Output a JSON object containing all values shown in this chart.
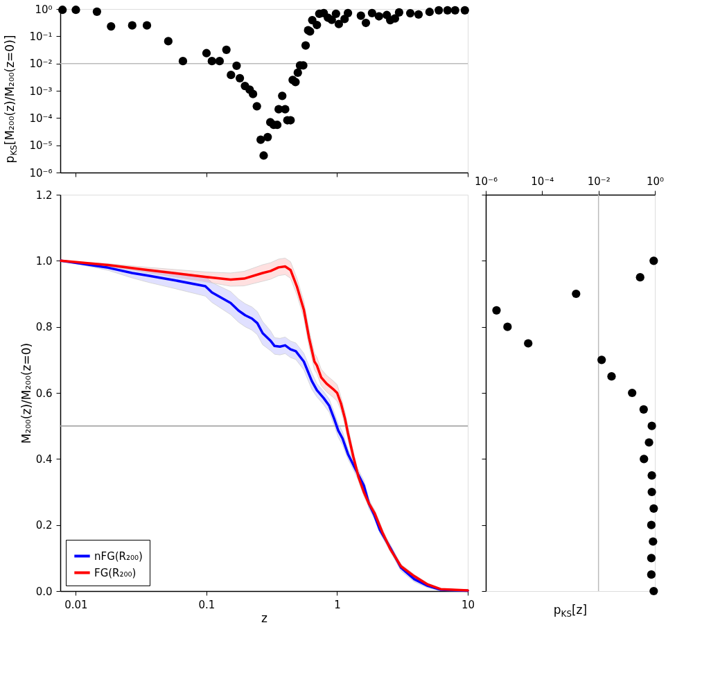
{
  "chart_data": [
    {
      "type": "scatter",
      "ylabel": "p$_{KS}$[M₂₀₀(z)/M₂₀₀(z=0)]",
      "log": "xy",
      "marker": "circle",
      "grid": false,
      "tick_labels": "y",
      "xlim": [
        0.0076,
        10
      ],
      "xticks": [
        0.01,
        0.1,
        1,
        10
      ],
      "ylim": [
        1e-06,
        1
      ],
      "yticks": [
        {
          "value": 1e-06,
          "label": "10⁻⁶"
        },
        {
          "value": 1e-05,
          "label": "10⁻⁵"
        },
        {
          "value": 0.0001,
          "label": "10⁻⁴"
        },
        {
          "value": 0.001,
          "label": "10⁻³"
        },
        {
          "value": 0.01,
          "label": "10⁻²"
        },
        {
          "value": 0.1,
          "label": "10⁻¹"
        },
        {
          "value": 1,
          "label": "10⁰"
        }
      ],
      "ref_lines": [
        {
          "axis": "y",
          "value": 0.01,
          "color": "#bbbbbb"
        }
      ],
      "series": [
        {
          "color": "#000000",
          "x": [
            0.0079,
            0.01,
            0.0145,
            0.0186,
            0.027,
            0.035,
            0.051,
            0.066,
            0.1,
            0.11,
            0.126,
            0.142,
            0.154,
            0.17,
            0.18,
            0.197,
            0.214,
            0.227,
            0.243,
            0.26,
            0.274,
            0.294,
            0.308,
            0.327,
            0.348,
            0.357,
            0.38,
            0.4,
            0.416,
            0.44,
            0.457,
            0.48,
            0.5,
            0.52,
            0.55,
            0.574,
            0.6,
            0.62,
            0.645,
            0.7,
            0.73,
            0.79,
            0.85,
            0.91,
            0.98,
            1.03,
            1.14,
            1.21,
            1.52,
            1.66,
            1.85,
            2.09,
            2.4,
            2.55,
            2.77,
            2.98,
            3.63,
            4.2,
            5.1,
            6,
            7,
            8,
            9.5
          ],
          "values": [
            0.93,
            0.93,
            0.8,
            0.23,
            0.25,
            0.25,
            0.066,
            0.0123,
            0.024,
            0.0123,
            0.0123,
            0.032,
            0.0038,
            0.0083,
            0.0029,
            0.0015,
            0.0011,
            0.00076,
            0.00027,
            1.6e-05,
            4.2e-06,
            2e-05,
            7e-05,
            5.6e-05,
            5.6e-05,
            0.00021,
            0.00065,
            0.00021,
            8.3e-05,
            8.3e-05,
            0.0025,
            0.0021,
            0.0046,
            0.0085,
            0.0085,
            0.046,
            0.166,
            0.15,
            0.39,
            0.26,
            0.67,
            0.71,
            0.48,
            0.4,
            0.67,
            0.28,
            0.43,
            0.71,
            0.57,
            0.31,
            0.71,
            0.54,
            0.6,
            0.39,
            0.45,
            0.75,
            0.7,
            0.63,
            0.78,
            0.9,
            0.9,
            0.9,
            0.9
          ]
        }
      ]
    },
    {
      "type": "line",
      "xlabel": "z",
      "ylabel": "M₂₀₀(z)/M₂₀₀(z=0)",
      "log": "x",
      "grid": false,
      "legend": "bottom left",
      "line_style": "solid",
      "xlim": [
        0.0076,
        10
      ],
      "xticks": [
        0.01,
        0.1,
        1,
        10
      ],
      "ylim": [
        0,
        1.2
      ],
      "yticks": [
        {
          "value": 0,
          "label": "0.0"
        },
        0.2,
        0.4,
        0.6,
        0.8,
        {
          "value": 1,
          "label": "1.0"
        },
        1.2
      ],
      "ref_lines": [
        {
          "axis": "y",
          "value": 0.5,
          "color": "#999999"
        }
      ],
      "series": [
        {
          "name": "nFG(R₂₀₀)",
          "color": "#0000ff",
          "x": [
            0.0077,
            0.011,
            0.0177,
            0.027,
            0.0357,
            0.057,
            0.098,
            0.11,
            0.153,
            0.176,
            0.198,
            0.223,
            0.245,
            0.269,
            0.309,
            0.332,
            0.365,
            0.4,
            0.44,
            0.483,
            0.556,
            0.64,
            0.7,
            0.79,
            0.87,
            0.95,
            1.02,
            1.1,
            1.21,
            1.39,
            1.6,
            1.75,
            1.93,
            2.12,
            2.56,
            3.08,
            3.9,
            4.93,
            6.2,
            10
          ],
          "values": [
            1.0,
            0.991,
            0.979,
            0.963,
            0.955,
            0.941,
            0.923,
            0.904,
            0.872,
            0.849,
            0.835,
            0.825,
            0.811,
            0.781,
            0.758,
            0.742,
            0.74,
            0.744,
            0.732,
            0.726,
            0.695,
            0.636,
            0.608,
            0.584,
            0.561,
            0.521,
            0.486,
            0.462,
            0.415,
            0.367,
            0.32,
            0.265,
            0.229,
            0.186,
            0.13,
            0.071,
            0.036,
            0.016,
            0.004,
            0.001
          ],
          "lower": [
            1.0,
            0.988,
            0.971,
            0.948,
            0.935,
            0.916,
            0.893,
            0.874,
            0.837,
            0.814,
            0.8,
            0.79,
            0.776,
            0.746,
            0.728,
            0.717,
            0.715,
            0.719,
            0.707,
            0.701,
            0.67,
            0.611,
            0.588,
            0.564,
            0.541,
            0.501,
            0.466,
            0.442,
            0.4,
            0.352,
            0.305,
            0.25,
            0.219,
            0.176,
            0.12,
            0.061,
            0.028,
            0.01,
            0.001,
            0.0
          ],
          "upper": [
            1.0,
            0.994,
            0.987,
            0.978,
            0.975,
            0.966,
            0.953,
            0.934,
            0.907,
            0.884,
            0.87,
            0.86,
            0.846,
            0.816,
            0.788,
            0.767,
            0.765,
            0.769,
            0.757,
            0.751,
            0.72,
            0.661,
            0.628,
            0.604,
            0.581,
            0.541,
            0.506,
            0.482,
            0.43,
            0.382,
            0.335,
            0.28,
            0.239,
            0.196,
            0.14,
            0.081,
            0.044,
            0.022,
            0.007,
            0.002
          ]
        },
        {
          "name": "FG(R₂₀₀)",
          "color": "#ff0000",
          "x": [
            0.0077,
            0.0177,
            0.0357,
            0.1,
            0.153,
            0.194,
            0.269,
            0.309,
            0.356,
            0.4,
            0.44,
            0.494,
            0.556,
            0.61,
            0.67,
            0.7,
            0.755,
            0.83,
            0.93,
            1.0,
            1.07,
            1.15,
            1.21,
            1.33,
            1.46,
            1.6,
            1.75,
            1.93,
            2.22,
            2.56,
            3.08,
            3.9,
            4.93,
            6.2,
            10
          ],
          "values": [
            1.0,
            0.987,
            0.972,
            0.951,
            0.943,
            0.946,
            0.963,
            0.969,
            0.98,
            0.983,
            0.972,
            0.92,
            0.852,
            0.766,
            0.695,
            0.683,
            0.647,
            0.628,
            0.612,
            0.6,
            0.568,
            0.521,
            0.478,
            0.407,
            0.344,
            0.3,
            0.265,
            0.237,
            0.178,
            0.126,
            0.075,
            0.045,
            0.02,
            0.006,
            0.002
          ],
          "lower": [
            1.0,
            0.983,
            0.964,
            0.936,
            0.923,
            0.924,
            0.938,
            0.944,
            0.955,
            0.958,
            0.947,
            0.895,
            0.827,
            0.741,
            0.67,
            0.658,
            0.622,
            0.603,
            0.587,
            0.575,
            0.548,
            0.501,
            0.458,
            0.392,
            0.332,
            0.288,
            0.255,
            0.227,
            0.168,
            0.118,
            0.069,
            0.04,
            0.016,
            0.004,
            0.001
          ],
          "upper": [
            1.0,
            0.991,
            0.98,
            0.966,
            0.963,
            0.968,
            0.988,
            0.994,
            1.005,
            1.008,
            0.997,
            0.945,
            0.877,
            0.791,
            0.72,
            0.708,
            0.672,
            0.653,
            0.637,
            0.625,
            0.588,
            0.541,
            0.498,
            0.422,
            0.356,
            0.312,
            0.275,
            0.247,
            0.188,
            0.134,
            0.081,
            0.05,
            0.024,
            0.008,
            0.003
          ]
        }
      ]
    },
    {
      "type": "scatter",
      "xlabel": "p$_{KS}$[z]",
      "log": "x",
      "marker": "circle",
      "grid": false,
      "tick_labels": "x",
      "xlim": [
        1e-06,
        1
      ],
      "xticks": [
        {
          "value": 1e-06,
          "label": "10⁻⁶"
        },
        {
          "value": 0.0001,
          "label": "10⁻⁴"
        },
        {
          "value": 0.01,
          "label": "10⁻²"
        },
        {
          "value": 1,
          "label": "10⁰"
        }
      ],
      "ylim": [
        0,
        1.2
      ],
      "yticks": [
        0,
        0.2,
        0.4,
        0.6,
        0.8,
        1,
        1.2
      ],
      "ref_lines": [
        {
          "axis": "x",
          "value": 0.01,
          "color": "#bbbbbb"
        }
      ],
      "series": [
        {
          "color": "#000000",
          "x": [
            0.91,
            0.3,
            0.0016,
            2.4e-06,
            5.9e-06,
            3.2e-05,
            0.0129,
            0.029,
            0.156,
            0.4,
            0.78,
            0.62,
            0.41,
            0.78,
            0.78,
            0.91,
            0.75,
            0.86,
            0.75,
            0.75,
            0.91
          ],
          "values": [
            1.0,
            0.95,
            0.9,
            0.85,
            0.8,
            0.75,
            0.7,
            0.65,
            0.6,
            0.55,
            0.5,
            0.45,
            0.4,
            0.35,
            0.3,
            0.25,
            0.2,
            0.15,
            0.1,
            0.05,
            0.0
          ]
        }
      ]
    }
  ]
}
